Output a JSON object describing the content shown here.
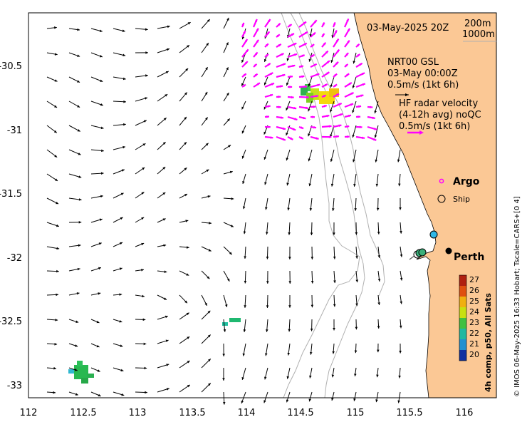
{
  "map": {
    "date_label": "03-May-2025 20Z",
    "depth_contours": [
      "200m",
      "1000m"
    ],
    "model_label": "NRT00 GSL",
    "model_time": "03-May 00:00Z",
    "model_scale": "0.5m/s (1kt 6h)",
    "radar_label": "HF radar velocity",
    "radar_avg": "(4-12h avg) noQC",
    "radar_scale": "0.5m/s (1kt 6h)",
    "argo_label": "Argo",
    "ship_label": "Ship",
    "city_label": "Perth",
    "colorbar_title": "4h comp, p50, All Sats",
    "credit": "© IMOS 06-May-2025 16:33 Hobart; Tscale=CARS+[0 4]",
    "x_ticks": [
      "112",
      "112.5",
      "113",
      "113.5",
      "114",
      "114.5",
      "115",
      "115.5",
      "116"
    ],
    "y_ticks": [
      "-30.5",
      "-31",
      "-31.5",
      "-32",
      "-32.5",
      "-33"
    ],
    "colorbar_ticks": [
      "27",
      "26",
      "25",
      "24",
      "23",
      "22",
      "21",
      "20"
    ],
    "colors": {
      "land": "#fbc895",
      "model_arrow": "#000000",
      "radar_arrow": "#ff00ff",
      "argo": "#ff00ff",
      "contour": "#b0b0b0"
    }
  }
}
